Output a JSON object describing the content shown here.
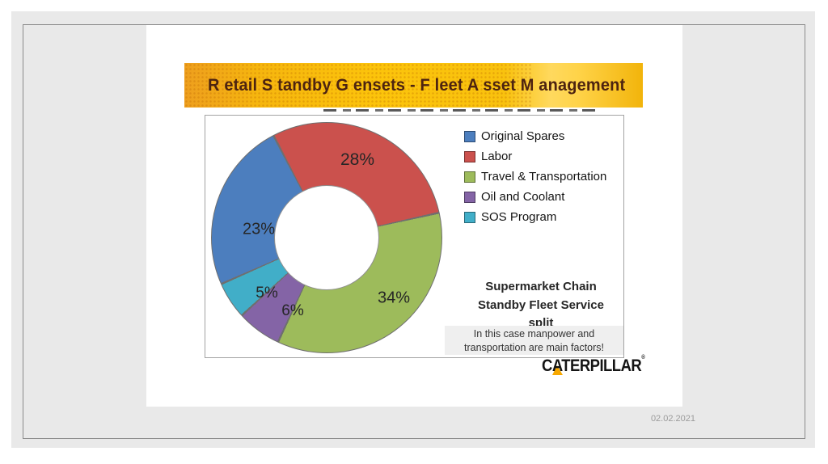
{
  "page": {
    "date": "02.02.2021"
  },
  "slide": {
    "title": "R etail S tandby G ensets - F leet A sset M anagement"
  },
  "logo": {
    "text": "CATERPILLAR",
    "mark": "®",
    "triangle_color": "#F7A800"
  },
  "chart_data": {
    "type": "pie",
    "subtype": "donut",
    "title": "Supermarket Chain\nStandby Fleet Service\nsplit",
    "note": "In this case manpower and\ntransportation are main factors!",
    "legend_position": "top-right",
    "start_angle": -28,
    "slice_order": [
      1,
      2,
      3,
      4,
      0
    ],
    "items": [
      {
        "label": "Original Spares",
        "value": 23,
        "pct": "23%",
        "color": "#4C7EBE"
      },
      {
        "label": "Labor",
        "value": 28,
        "pct": "28%",
        "color": "#CB514D"
      },
      {
        "label": "Travel & Transportation",
        "value": 34,
        "pct": "34%",
        "color": "#9DBB5B"
      },
      {
        "label": "Oil and Coolant",
        "value": 6,
        "pct": "6%",
        "color": "#8464A6"
      },
      {
        "label": "SOS Program",
        "value": 5,
        "pct": "5%",
        "color": "#41AEC8"
      }
    ],
    "colors": {
      "banner_left": "#EE9F1E",
      "banner_gold": "#FCC40B",
      "banner_light_band": "#FFD95E",
      "title_text": "#4D2310",
      "slice_border": "#6F6F6F",
      "note_background": "#EFEFEF"
    }
  }
}
